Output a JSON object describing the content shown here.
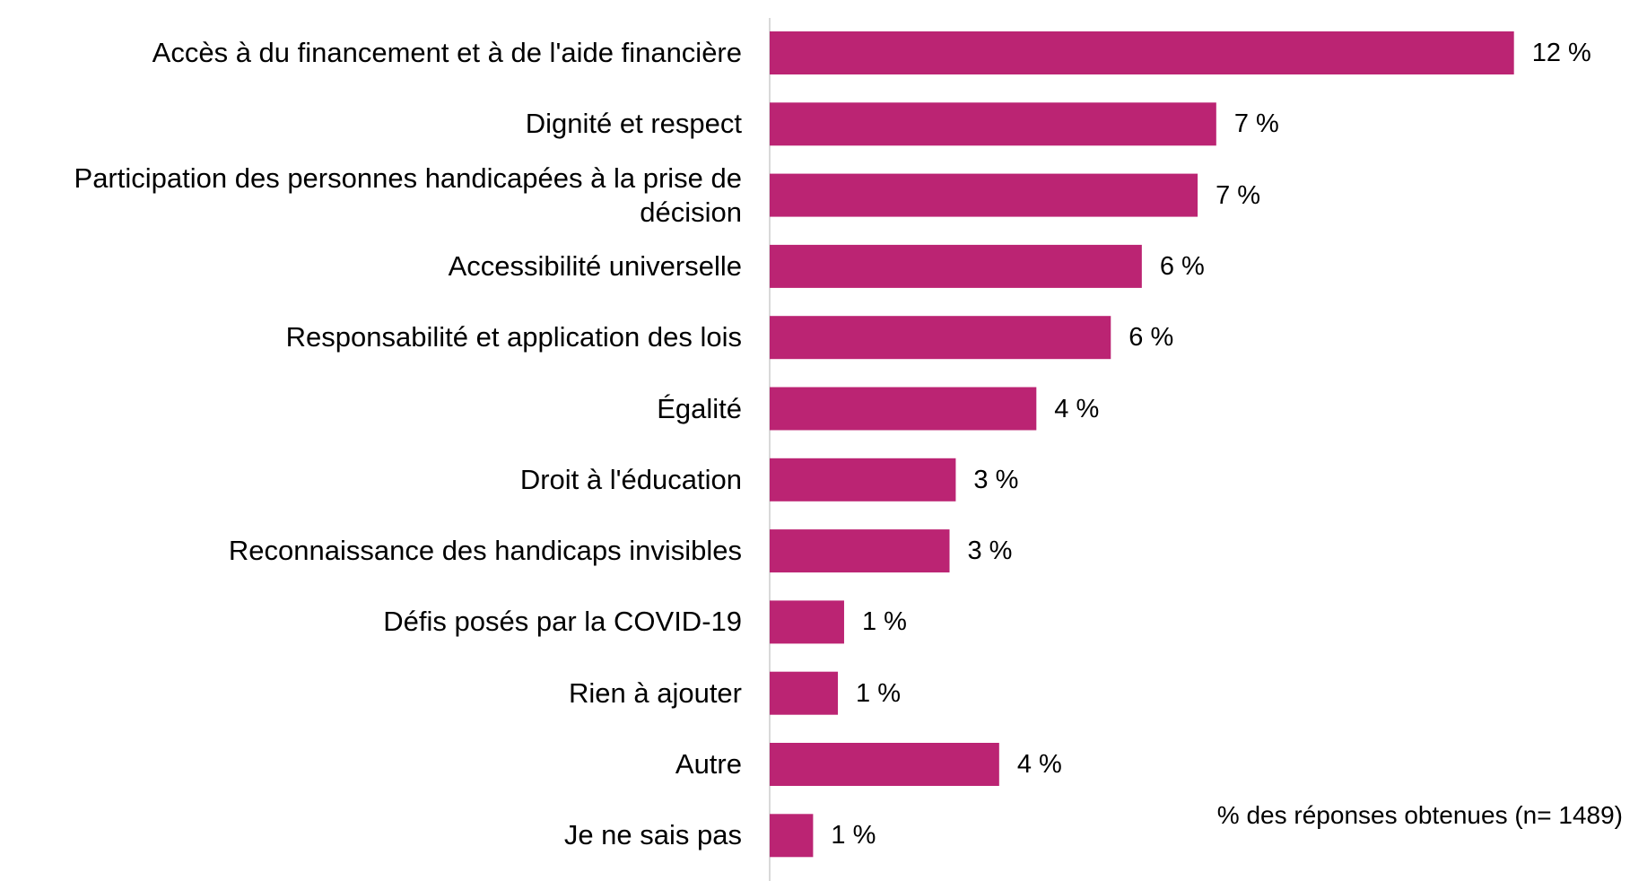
{
  "chart_data": {
    "type": "bar",
    "orientation": "horizontal",
    "categories": [
      "Accès à du financement et à de l'aide financière",
      "Dignité et respect",
      "Participation des personnes handicapées à la prise de décision",
      "Accessibilité universelle",
      "Responsabilité et application des lois",
      "Égalité",
      "Droit à l'éducation",
      "Reconnaissance des handicaps invisibles",
      "Défis posés par la COVID-19",
      "Rien à ajouter",
      "Autre",
      "Je ne sais pas"
    ],
    "values": [
      12.0,
      7.2,
      6.9,
      6.0,
      5.5,
      4.3,
      3.0,
      2.9,
      1.2,
      1.1,
      3.7,
      0.7
    ],
    "value_labels": [
      "12 %",
      "7 %",
      "7 %",
      "6 %",
      "6 %",
      "4 %",
      "3 %",
      "3 %",
      "1 %",
      "1 %",
      "4 %",
      "1 %"
    ],
    "xlim": [
      0,
      12.8
    ],
    "bar_color": "#bb2473",
    "axis_color": "#d9d9d9",
    "grid": false,
    "legend": "none",
    "note": "% des réponses obtenues (n= 1489)"
  }
}
